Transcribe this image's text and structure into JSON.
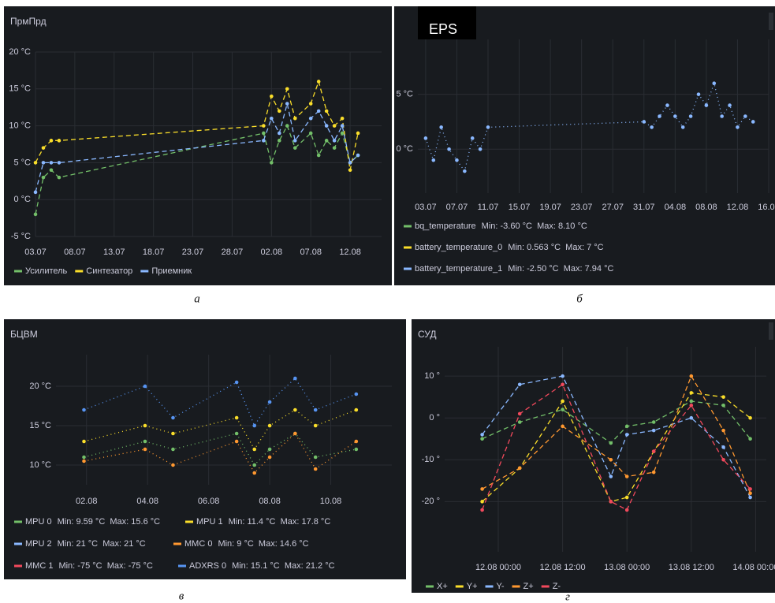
{
  "chart_data": [
    {
      "type": "line",
      "title": "ПрмПрд",
      "line_style": "dashed",
      "xlim": [
        "07-03",
        "08-16"
      ],
      "xticks": [
        {
          "value": "07-03",
          "label": "03.07"
        },
        {
          "value": "07-08",
          "label": "08.07"
        },
        {
          "value": "07-13",
          "label": "13.07"
        },
        {
          "value": "07-18",
          "label": "18.07"
        },
        {
          "value": "07-23",
          "label": "23.07"
        },
        {
          "value": "07-28",
          "label": "28.07"
        },
        {
          "value": "08-02",
          "label": "02.08"
        },
        {
          "value": "08-07",
          "label": "07.08"
        },
        {
          "value": "08-12",
          "label": "12.08"
        }
      ],
      "ylim": [
        -5,
        20
      ],
      "yticks": [
        {
          "value": -5,
          "label": "-5 °C"
        },
        {
          "value": 0,
          "label": "0 °C"
        },
        {
          "value": 5,
          "label": "5 °C"
        },
        {
          "value": 10,
          "label": "10 °C"
        },
        {
          "value": 15,
          "label": "15 °C"
        },
        {
          "value": 20,
          "label": "20 °C"
        }
      ],
      "grid": true,
      "series": [
        {
          "name": "Усилитель",
          "color": "#73bf69",
          "x": [
            "07-03",
            "07-04",
            "07-05",
            "07-06",
            "08-01",
            "08-02",
            "08-03",
            "08-04",
            "08-05",
            "08-07",
            "08-08",
            "08-09",
            "08-10",
            "08-11",
            "08-12",
            "08-13"
          ],
          "values": [
            -2,
            3,
            4,
            3,
            9,
            5,
            8,
            10,
            7,
            9,
            6,
            8,
            7,
            9,
            5,
            6
          ]
        },
        {
          "name": "Синтезатор",
          "color": "#fade2a",
          "x": [
            "07-03",
            "07-04",
            "07-05",
            "07-06",
            "08-01",
            "08-02",
            "08-03",
            "08-04",
            "08-05",
            "08-07",
            "08-08",
            "08-09",
            "08-10",
            "08-11",
            "08-12",
            "08-13"
          ],
          "values": [
            5,
            7,
            8,
            8,
            10,
            14,
            12,
            15,
            11,
            13,
            16,
            12,
            10,
            11,
            4,
            9
          ]
        },
        {
          "name": "Приемник",
          "color": "#8ab8ff",
          "x": [
            "07-03",
            "07-04",
            "07-05",
            "07-06",
            "08-01",
            "08-02",
            "08-03",
            "08-04",
            "08-05",
            "08-07",
            "08-08",
            "08-09",
            "08-10",
            "08-11",
            "08-12",
            "08-13"
          ],
          "values": [
            1,
            5,
            5,
            5,
            8,
            11,
            9,
            13,
            8,
            11,
            12,
            10,
            8,
            10,
            5,
            6
          ]
        }
      ]
    },
    {
      "type": "line",
      "title": "EPS",
      "line_style": "dotted",
      "xlim": [
        "07-02",
        "08-16"
      ],
      "xticks": [
        {
          "value": "07-03",
          "label": "03.07"
        },
        {
          "value": "07-07",
          "label": "07.07"
        },
        {
          "value": "07-11",
          "label": "11.07"
        },
        {
          "value": "07-15",
          "label": "15.07"
        },
        {
          "value": "07-19",
          "label": "19.07"
        },
        {
          "value": "07-23",
          "label": "23.07"
        },
        {
          "value": "07-27",
          "label": "27.07"
        },
        {
          "value": "07-31",
          "label": "31.07"
        },
        {
          "value": "08-04",
          "label": "04.08"
        },
        {
          "value": "08-08",
          "label": "08.08"
        },
        {
          "value": "08-12",
          "label": "12.08"
        },
        {
          "value": "08-16",
          "label": "16.08"
        }
      ],
      "ylim": [
        -4,
        10
      ],
      "yticks": [
        {
          "value": 0,
          "label": "0 °C"
        },
        {
          "value": 5,
          "label": "5 °C"
        }
      ],
      "grid": true,
      "series": [
        {
          "name": "bq_temperature",
          "color": "#73bf69",
          "stats": "Min: -3.60 °C  Max: 8.10 °C"
        },
        {
          "name": "battery_temperature_0",
          "color": "#fade2a",
          "stats": "Min: 0.563 °C  Max: 7 °C"
        },
        {
          "name": "battery_temperature_1",
          "color": "#8ab8ff",
          "stats": "Min: -2.50 °C  Max: 7.94 °C",
          "x": [
            "07-03",
            "07-04",
            "07-05",
            "07-06",
            "07-07",
            "07-08",
            "07-09",
            "07-10",
            "07-11",
            "07-31",
            "08-01",
            "08-02",
            "08-03",
            "08-04",
            "08-05",
            "08-06",
            "08-07",
            "08-08",
            "08-09",
            "08-10",
            "08-11",
            "08-12",
            "08-13",
            "08-14"
          ],
          "values": [
            1,
            -1,
            2,
            0,
            -1,
            -2,
            1,
            0,
            2,
            2.5,
            2,
            3,
            4,
            3,
            2,
            3,
            5,
            4,
            6,
            3,
            4,
            2,
            3,
            2.5
          ]
        }
      ]
    },
    {
      "type": "line",
      "title": "БЦВМ",
      "line_style": "dotted",
      "xlim": [
        "08-01",
        "08-12"
      ],
      "xticks": [
        {
          "value": "08-02",
          "label": "02.08"
        },
        {
          "value": "08-04",
          "label": "04.08"
        },
        {
          "value": "08-06",
          "label": "06.08"
        },
        {
          "value": "08-08",
          "label": "08.08"
        },
        {
          "value": "08-10",
          "label": "10.08"
        }
      ],
      "ylim": [
        7.5,
        24
      ],
      "yticks": [
        {
          "value": 10,
          "label": "10 °C"
        },
        {
          "value": 15,
          "label": "15 °C"
        },
        {
          "value": 20,
          "label": "20 °C"
        }
      ],
      "grid": true,
      "series": [
        {
          "name": "MPU 0",
          "color": "#73bf69",
          "stats": "Min: 9.59 °C  Max: 15.6 °C",
          "x": [
            "08-01T22:00",
            "08-03T22:00",
            "08-04T20:00",
            "08-06T22:00",
            "08-07T12:00",
            "08-08T00:00",
            "08-08T20:00",
            "08-09T12:00",
            "08-10T20:00"
          ],
          "values": [
            11,
            13,
            12,
            14,
            10,
            12,
            14,
            11,
            12
          ]
        },
        {
          "name": "MPU 1",
          "color": "#fade2a",
          "stats": "Min: 11.4 °C  Max: 17.8 °C",
          "x": [
            "08-01T22:00",
            "08-03T22:00",
            "08-04T20:00",
            "08-06T22:00",
            "08-07T12:00",
            "08-08T00:00",
            "08-08T20:00",
            "08-09T12:00",
            "08-10T20:00"
          ],
          "values": [
            13,
            15,
            14,
            16,
            12,
            15,
            17,
            15,
            17
          ]
        },
        {
          "name": "MPU 2",
          "color": "#8ab8ff",
          "stats": "Min: 21 °C  Max: 21 °C"
        },
        {
          "name": "MMC 0",
          "color": "#ff9830",
          "stats": "Min: 9 °C  Max: 14.6 °C",
          "x": [
            "08-01T22:00",
            "08-03T22:00",
            "08-04T20:00",
            "08-06T22:00",
            "08-07T12:00",
            "08-08T00:00",
            "08-08T20:00",
            "08-09T12:00",
            "08-10T20:00"
          ],
          "values": [
            10.5,
            12,
            10,
            13,
            9,
            11,
            14,
            9.5,
            13
          ]
        },
        {
          "name": "MMC 1",
          "color": "#f2495c",
          "stats": "Min: -75 °C  Max: -75 °C"
        },
        {
          "name": "ADXRS 0",
          "color": "#5794f2",
          "stats": "Min: 15.1 °C  Max: 21.2 °C",
          "x": [
            "08-01T22:00",
            "08-03T22:00",
            "08-04T20:00",
            "08-06T22:00",
            "08-07T12:00",
            "08-08T00:00",
            "08-08T20:00",
            "08-09T12:00",
            "08-10T20:00"
          ],
          "values": [
            17,
            20,
            16,
            20.5,
            15,
            18,
            21,
            17,
            19
          ]
        }
      ]
    },
    {
      "type": "line",
      "title": "СУД",
      "line_style": "dashed",
      "xlim": [
        "08-11T14:00",
        "08-14T02:00"
      ],
      "xticks": [
        {
          "value": "08-12T00:00",
          "label": "12.08 00:00"
        },
        {
          "value": "08-12T12:00",
          "label": "12.08 12:00"
        },
        {
          "value": "08-13T00:00",
          "label": "13.08 00:00"
        },
        {
          "value": "08-13T12:00",
          "label": "13.08 12:00"
        },
        {
          "value": "08-14T00:00",
          "label": "14.08 00:00"
        }
      ],
      "ylim": [
        -32,
        17
      ],
      "yticks": [
        {
          "value": -20,
          "label": "-20 °"
        },
        {
          "value": -10,
          "label": "-10 °"
        },
        {
          "value": 0,
          "label": "0 °"
        },
        {
          "value": 10,
          "label": "10 °"
        }
      ],
      "grid": true,
      "series": [
        {
          "name": "X+",
          "color": "#73bf69",
          "x": [
            "08-11T21:00",
            "08-12T04:00",
            "08-12T12:00",
            "08-12T21:00",
            "08-13T00:00",
            "08-13T05:00",
            "08-13T12:00",
            "08-13T18:00",
            "08-13T23:00"
          ],
          "values": [
            -5,
            -1,
            2,
            -6,
            -2,
            -1,
            4,
            3,
            -5
          ]
        },
        {
          "name": "Y+",
          "color": "#fade2a",
          "x": [
            "08-11T21:00",
            "08-12T04:00",
            "08-12T12:00",
            "08-12T21:00",
            "08-13T00:00",
            "08-13T05:00",
            "08-13T12:00",
            "08-13T18:00",
            "08-13T23:00"
          ],
          "values": [
            -20,
            -12,
            4,
            -20,
            -19,
            -8,
            6,
            5,
            0
          ]
        },
        {
          "name": "Y-",
          "color": "#8ab8ff",
          "x": [
            "08-11T21:00",
            "08-12T04:00",
            "08-12T12:00",
            "08-12T21:00",
            "08-13T00:00",
            "08-13T05:00",
            "08-13T12:00",
            "08-13T18:00",
            "08-13T23:00"
          ],
          "values": [
            -4,
            8,
            10,
            -14,
            -4,
            -3,
            0,
            -7,
            -19
          ]
        },
        {
          "name": "Z+",
          "color": "#ff9830",
          "x": [
            "08-11T21:00",
            "08-12T04:00",
            "08-12T12:00",
            "08-12T21:00",
            "08-13T00:00",
            "08-13T05:00",
            "08-13T12:00",
            "08-13T18:00",
            "08-13T23:00"
          ],
          "values": [
            -17,
            -12,
            -2,
            -10,
            -14,
            -13,
            10,
            -3,
            -18
          ]
        },
        {
          "name": "Z-",
          "color": "#f2495c",
          "x": [
            "08-11T21:00",
            "08-12T04:00",
            "08-12T12:00",
            "08-12T21:00",
            "08-13T00:00",
            "08-13T05:00",
            "08-13T12:00",
            "08-13T18:00",
            "08-13T23:00"
          ],
          "values": [
            -22,
            1,
            8,
            -20,
            -22,
            -8,
            3,
            -10,
            -17
          ]
        }
      ]
    }
  ],
  "captions": [
    "а",
    "б",
    "в",
    "г"
  ]
}
